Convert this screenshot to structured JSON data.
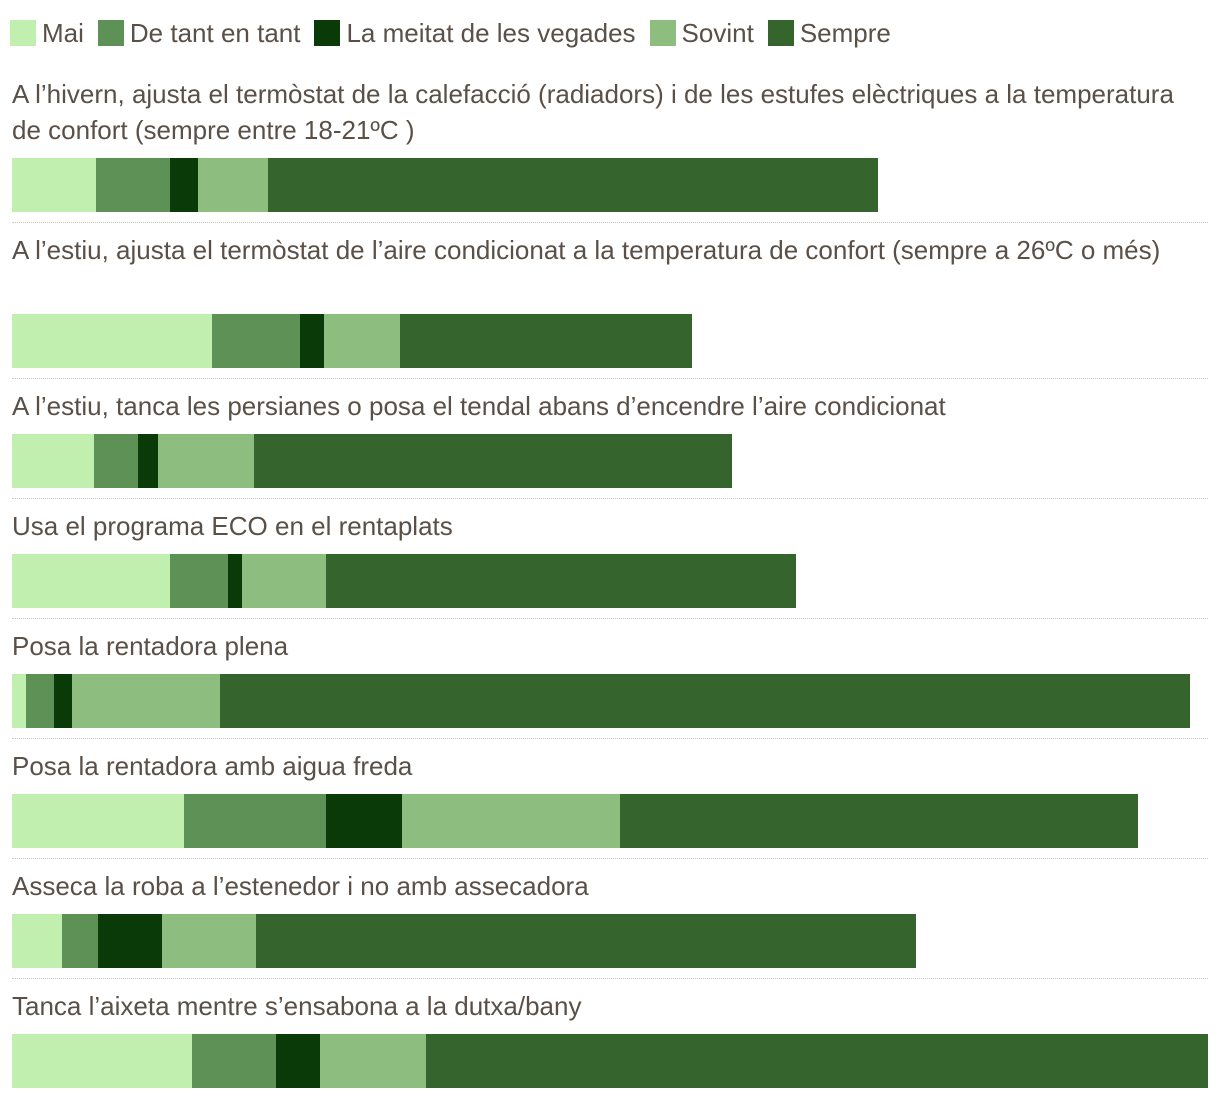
{
  "chart_data": {
    "type": "bar",
    "orientation": "horizontal",
    "stacked": true,
    "legend_position": "top-left",
    "grid": false,
    "series": [
      {
        "name": "Mai",
        "color": "#c0efb0"
      },
      {
        "name": "De tant en tant",
        "color": "#5e9155"
      },
      {
        "name": "La meitat de les vegades",
        "color": "#0a3a07"
      },
      {
        "name": "Sovint",
        "color": "#8ebd80"
      },
      {
        "name": "Sempre",
        "color": "#36642d"
      }
    ],
    "rows": [
      {
        "label": "A l’hivern, ajusta el termòstat de la calefacció (radiadors) i de les estufes elèctriques a la temperatura de confort (sempre entre 18-21ºC )",
        "values": [
          84,
          74,
          28,
          70,
          610
        ]
      },
      {
        "label": "A l’estiu, ajusta el termòstat de l’aire condicionat a la temperatura de confort (sempre a 26ºC o més)",
        "values": [
          200,
          88,
          24,
          76,
          292
        ]
      },
      {
        "label": "A l’estiu, tanca les persianes o posa el tendal abans d’encendre l’aire condicionat",
        "values": [
          82,
          44,
          20,
          96,
          478
        ]
      },
      {
        "label": "Usa el programa ECO en el rentaplats",
        "values": [
          158,
          58,
          14,
          84,
          470
        ]
      },
      {
        "label": "Posa la rentadora plena",
        "values": [
          14,
          28,
          18,
          148,
          970
        ]
      },
      {
        "label": "Posa la rentadora amb aigua freda",
        "values": [
          172,
          142,
          76,
          218,
          518
        ]
      },
      {
        "label": "Asseca la roba a l’estenedor i no amb assecadora",
        "values": [
          50,
          36,
          64,
          94,
          660
        ]
      },
      {
        "label": "Tanca l’aixeta mentre s’ensabona a la dutxa/bany",
        "values": [
          180,
          84,
          44,
          106,
          782
        ]
      }
    ]
  }
}
